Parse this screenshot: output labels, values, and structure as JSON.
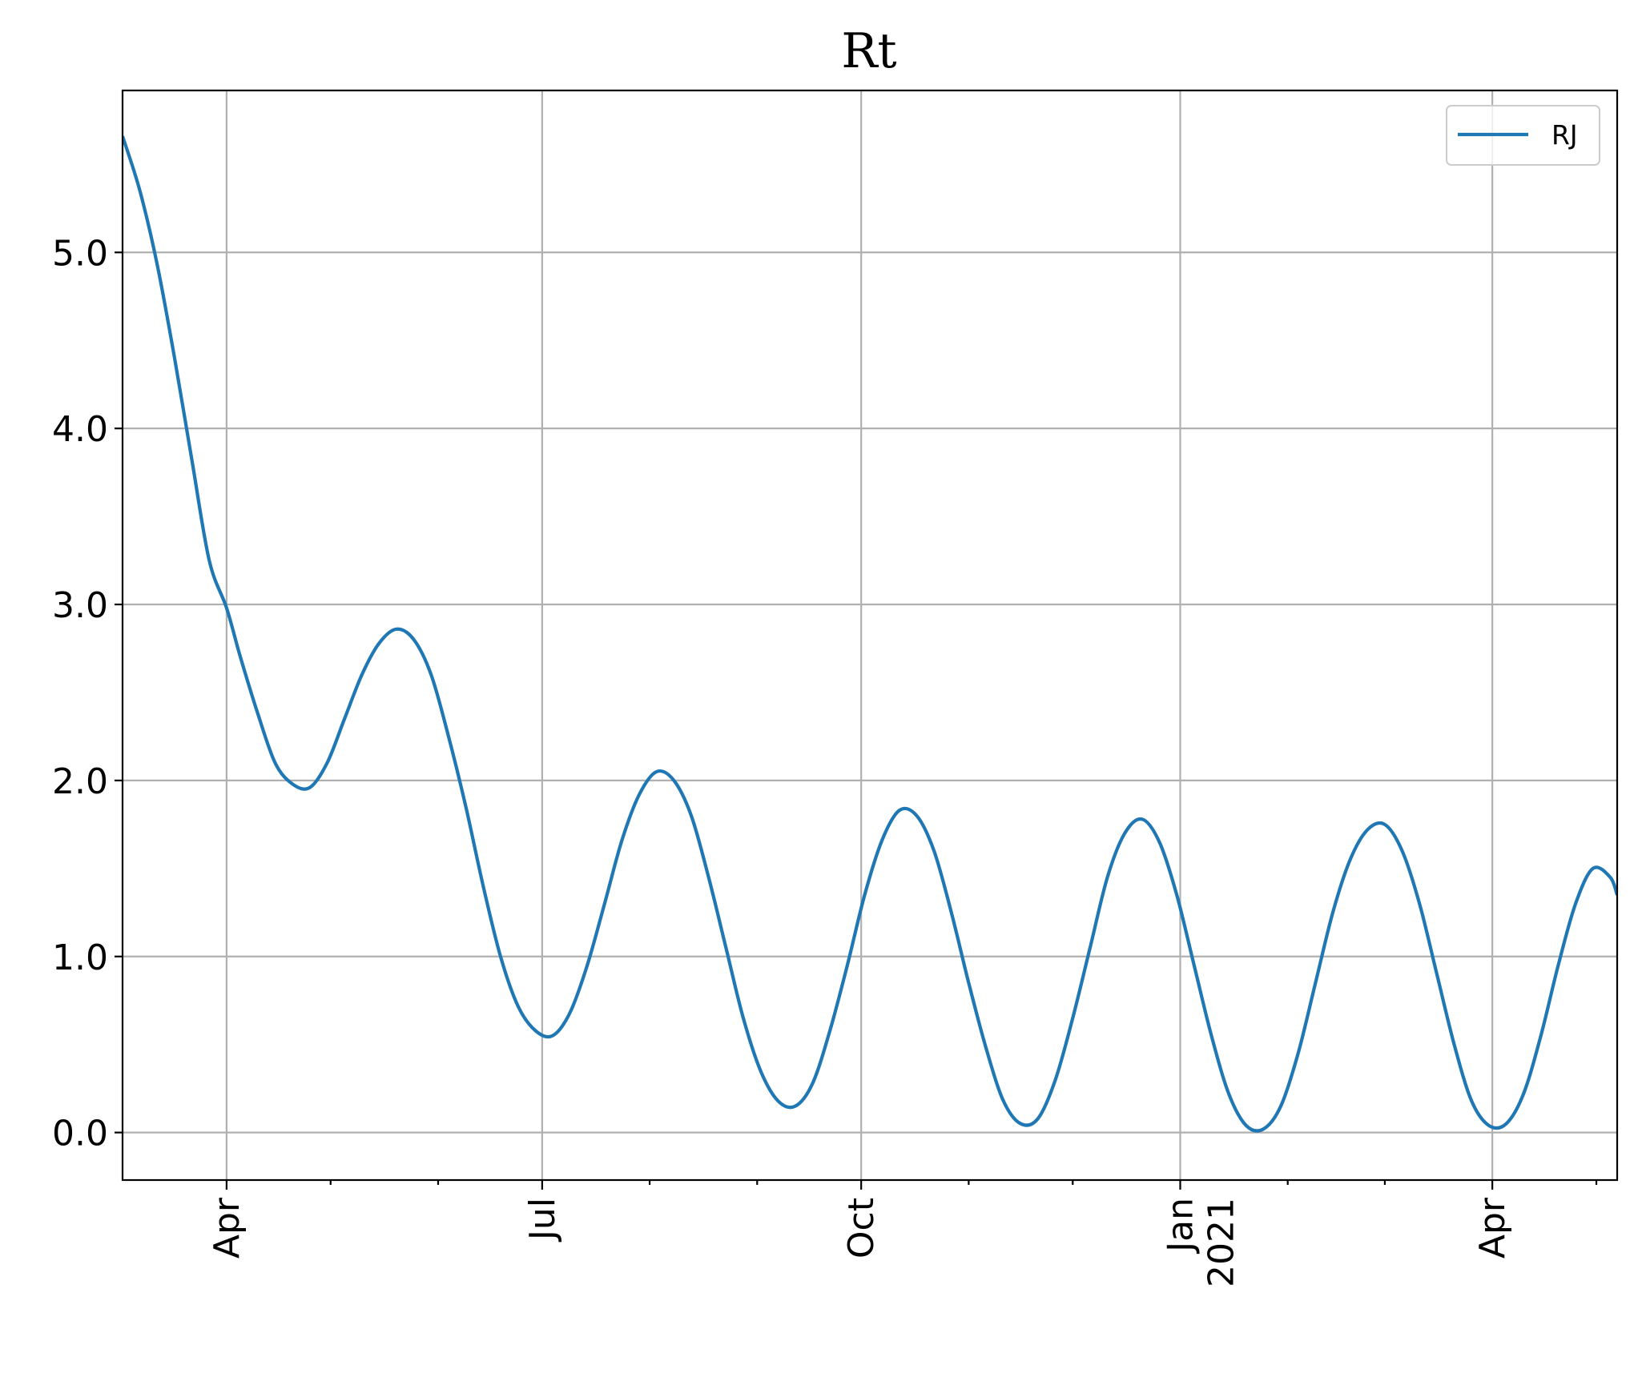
{
  "chart_data": {
    "type": "line",
    "title": "Rt",
    "xlabel": "",
    "ylabel": "",
    "xlim": [
      "2020-03-02",
      "2021-05-07"
    ],
    "ylim": [
      -0.27,
      5.92
    ],
    "x_ticks": [
      {
        "date": "2020-04-01",
        "label": "Apr",
        "sublabel": ""
      },
      {
        "date": "2020-07-01",
        "label": "Jul",
        "sublabel": ""
      },
      {
        "date": "2020-10-01",
        "label": "Oct",
        "sublabel": ""
      },
      {
        "date": "2021-01-01",
        "label": "Jan",
        "sublabel": "2021"
      },
      {
        "date": "2021-04-01",
        "label": "Apr",
        "sublabel": ""
      }
    ],
    "x_minor_ticks": [
      "2020-03-01",
      "2020-05-01",
      "2020-06-01",
      "2020-08-01",
      "2020-09-01",
      "2020-11-01",
      "2020-12-01",
      "2021-02-01",
      "2021-03-01",
      "2021-05-01"
    ],
    "y_ticks": [
      {
        "value": 0,
        "label": "0.0"
      },
      {
        "value": 1,
        "label": "1.0"
      },
      {
        "value": 2,
        "label": "2.0"
      },
      {
        "value": 3,
        "label": "3.0"
      },
      {
        "value": 4,
        "label": "4.0"
      },
      {
        "value": 5,
        "label": "5.0"
      }
    ],
    "grid": true,
    "legend": "top-right",
    "series": [
      {
        "name": "RJ",
        "color": "#1f77b4",
        "points": [
          [
            "2020-03-02",
            5.66
          ],
          [
            "2020-03-07",
            5.35
          ],
          [
            "2020-03-12",
            4.93
          ],
          [
            "2020-03-17",
            4.4
          ],
          [
            "2020-03-22",
            3.82
          ],
          [
            "2020-03-27",
            3.25
          ],
          [
            "2020-04-01",
            2.98
          ],
          [
            "2020-04-05",
            2.7
          ],
          [
            "2020-04-10",
            2.38
          ],
          [
            "2020-04-15",
            2.1
          ],
          [
            "2020-04-20",
            1.98
          ],
          [
            "2020-04-25",
            1.96
          ],
          [
            "2020-04-30",
            2.1
          ],
          [
            "2020-05-05",
            2.35
          ],
          [
            "2020-05-10",
            2.6
          ],
          [
            "2020-05-15",
            2.78
          ],
          [
            "2020-05-20",
            2.86
          ],
          [
            "2020-05-25",
            2.8
          ],
          [
            "2020-05-30",
            2.6
          ],
          [
            "2020-06-04",
            2.25
          ],
          [
            "2020-06-09",
            1.85
          ],
          [
            "2020-06-14",
            1.4
          ],
          [
            "2020-06-19",
            1.0
          ],
          [
            "2020-06-24",
            0.72
          ],
          [
            "2020-06-29",
            0.58
          ],
          [
            "2020-07-04",
            0.55
          ],
          [
            "2020-07-09",
            0.68
          ],
          [
            "2020-07-14",
            0.95
          ],
          [
            "2020-07-19",
            1.3
          ],
          [
            "2020-07-24",
            1.66
          ],
          [
            "2020-07-29",
            1.92
          ],
          [
            "2020-08-03",
            2.05
          ],
          [
            "2020-08-08",
            2.0
          ],
          [
            "2020-08-13",
            1.8
          ],
          [
            "2020-08-18",
            1.45
          ],
          [
            "2020-08-23",
            1.05
          ],
          [
            "2020-08-28",
            0.65
          ],
          [
            "2020-09-02",
            0.35
          ],
          [
            "2020-09-07",
            0.18
          ],
          [
            "2020-09-12",
            0.15
          ],
          [
            "2020-09-17",
            0.28
          ],
          [
            "2020-09-22",
            0.58
          ],
          [
            "2020-09-27",
            0.95
          ],
          [
            "2020-10-02",
            1.35
          ],
          [
            "2020-10-07",
            1.66
          ],
          [
            "2020-10-12",
            1.83
          ],
          [
            "2020-10-17",
            1.8
          ],
          [
            "2020-10-22",
            1.6
          ],
          [
            "2020-10-27",
            1.25
          ],
          [
            "2020-11-01",
            0.85
          ],
          [
            "2020-11-06",
            0.48
          ],
          [
            "2020-11-11",
            0.18
          ],
          [
            "2020-11-16",
            0.05
          ],
          [
            "2020-11-21",
            0.08
          ],
          [
            "2020-11-26",
            0.3
          ],
          [
            "2020-12-01",
            0.65
          ],
          [
            "2020-12-06",
            1.05
          ],
          [
            "2020-12-11",
            1.45
          ],
          [
            "2020-12-16",
            1.7
          ],
          [
            "2020-12-21",
            1.78
          ],
          [
            "2020-12-26",
            1.65
          ],
          [
            "2020-12-31",
            1.35
          ],
          [
            "2021-01-05",
            0.95
          ],
          [
            "2021-01-10",
            0.55
          ],
          [
            "2021-01-15",
            0.22
          ],
          [
            "2021-01-20",
            0.04
          ],
          [
            "2021-01-25",
            0.02
          ],
          [
            "2021-01-30",
            0.15
          ],
          [
            "2021-02-04",
            0.45
          ],
          [
            "2021-02-09",
            0.85
          ],
          [
            "2021-02-14",
            1.25
          ],
          [
            "2021-02-19",
            1.55
          ],
          [
            "2021-02-24",
            1.72
          ],
          [
            "2021-03-01",
            1.75
          ],
          [
            "2021-03-06",
            1.6
          ],
          [
            "2021-03-11",
            1.3
          ],
          [
            "2021-03-16",
            0.9
          ],
          [
            "2021-03-21",
            0.5
          ],
          [
            "2021-03-26",
            0.18
          ],
          [
            "2021-03-31",
            0.04
          ],
          [
            "2021-04-05",
            0.05
          ],
          [
            "2021-04-10",
            0.22
          ],
          [
            "2021-04-15",
            0.55
          ],
          [
            "2021-04-20",
            0.95
          ],
          [
            "2021-04-25",
            1.3
          ],
          [
            "2021-04-30",
            1.5
          ],
          [
            "2021-05-05",
            1.45
          ],
          [
            "2021-05-07",
            1.35
          ]
        ]
      }
    ]
  }
}
